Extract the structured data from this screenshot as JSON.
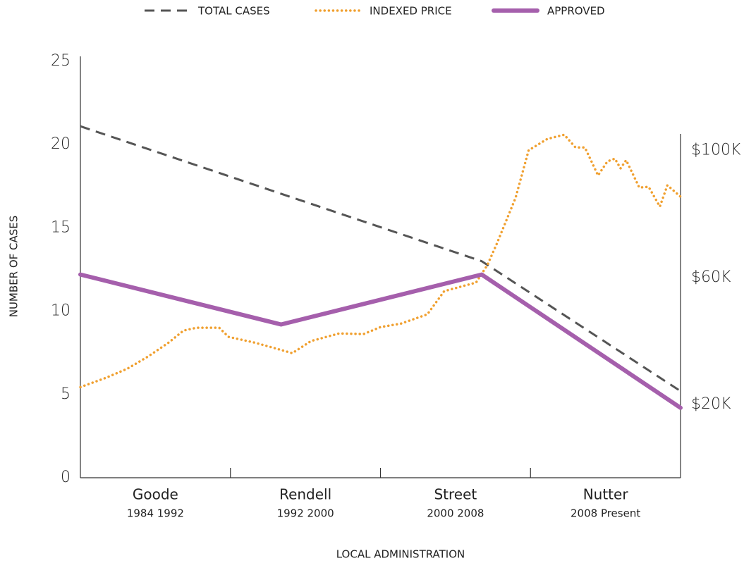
{
  "chart_data": {
    "type": "line",
    "legend_position": "top",
    "xlabel": "LOCAL ADMINISTRATION",
    "ylabel": "NUMBER OF CASES",
    "categories": [
      "Goode",
      "Rendell",
      "Street",
      "Nutter"
    ],
    "category_sublabels": [
      "1984 1992",
      "1992 2000",
      "2000 2008",
      "2008 Present"
    ],
    "xlim": [
      1984,
      2016
    ],
    "xticks": [
      1992,
      2000,
      2008
    ],
    "ylim": [
      0,
      25
    ],
    "yticks": [
      0,
      5,
      10,
      15,
      20,
      25
    ],
    "y2lim": [
      -3000,
      128000
    ],
    "y2ticks": [
      {
        "value": 20000,
        "label": "$20K"
      },
      {
        "value": 60000,
        "label": "$60K"
      },
      {
        "value": 100000,
        "label": "$100K"
      }
    ],
    "series": [
      {
        "name": "TOTAL CASES",
        "color": "#555555",
        "style": "dashed",
        "x": [
          1984,
          2005.4,
          2016
        ],
        "values": [
          21.1,
          13.0,
          5.2
        ]
      },
      {
        "name": "INDEXED PRICE",
        "color": "#f0a030",
        "style": "dotted",
        "axis": "y2",
        "x": [
          1984,
          1985.35,
          1986.5,
          1987.6,
          1988.7,
          1989.5,
          1990.2,
          1991.4,
          1991.9,
          1993.3,
          1994.4,
          1995.3,
          1996.3,
          1997.8,
          1999.1,
          2000.0,
          2001.1,
          2002.5,
          2003.4,
          2005.1,
          2005.7,
          2006.2,
          2007.2,
          2007.9,
          2008.9,
          2009.8,
          2010.4,
          2010.9,
          2011.6,
          2012.1,
          2012.5,
          2012.8,
          2013.1,
          2013.8,
          2014.3,
          2014.9,
          2015.3,
          2016
        ],
        "values": [
          25500,
          28400,
          31300,
          35100,
          39500,
          43300,
          44200,
          44200,
          41300,
          39500,
          37700,
          36200,
          40000,
          42400,
          42200,
          44400,
          45500,
          48400,
          55700,
          58400,
          63900,
          70600,
          85000,
          100000,
          103600,
          104900,
          100900,
          100900,
          92100,
          96500,
          97400,
          94300,
          96900,
          88300,
          88500,
          82300,
          89000,
          85400
        ]
      },
      {
        "name": "APPROVED",
        "color": "#a55fac",
        "style": "solid",
        "x": [
          1984,
          1994.7,
          2005.4,
          2016
        ],
        "values": [
          12.2,
          9.2,
          12.2,
          4.2
        ]
      }
    ]
  }
}
